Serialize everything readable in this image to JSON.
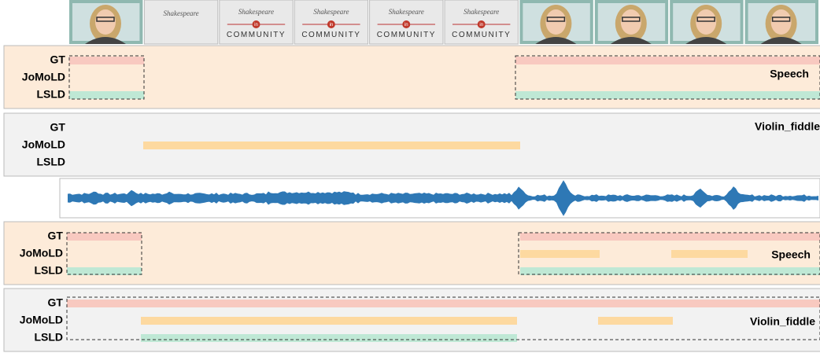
{
  "frames": [
    null,
    {
      "title": "Shakespeare"
    },
    {
      "title": "Shakespeare",
      "badge": "in",
      "word": "COMMUNITY"
    },
    {
      "title": "Shakespeare",
      "badge": "in",
      "word": "COMMUNITY"
    },
    {
      "title": "Shakespeare",
      "badge": "in",
      "word": "COMMUNITY"
    },
    {
      "title": "Shakespeare",
      "badge": "in",
      "word": "COMMUNITY"
    },
    null,
    null,
    null,
    null
  ],
  "panels": [
    {
      "rows": [
        "GT",
        "JoMoLD",
        "LSLD"
      ],
      "label": "Speech"
    },
    {
      "rows": [
        "GT",
        "JoMoLD",
        "LSLD"
      ],
      "label": "Violin_fiddle"
    },
    {
      "rows": [
        "GT",
        "JoMoLD",
        "LSLD"
      ],
      "label": "Speech"
    },
    {
      "rows": [
        "GT",
        "JoMoLD",
        "LSLD"
      ],
      "label": "Violin_fiddle"
    }
  ]
}
